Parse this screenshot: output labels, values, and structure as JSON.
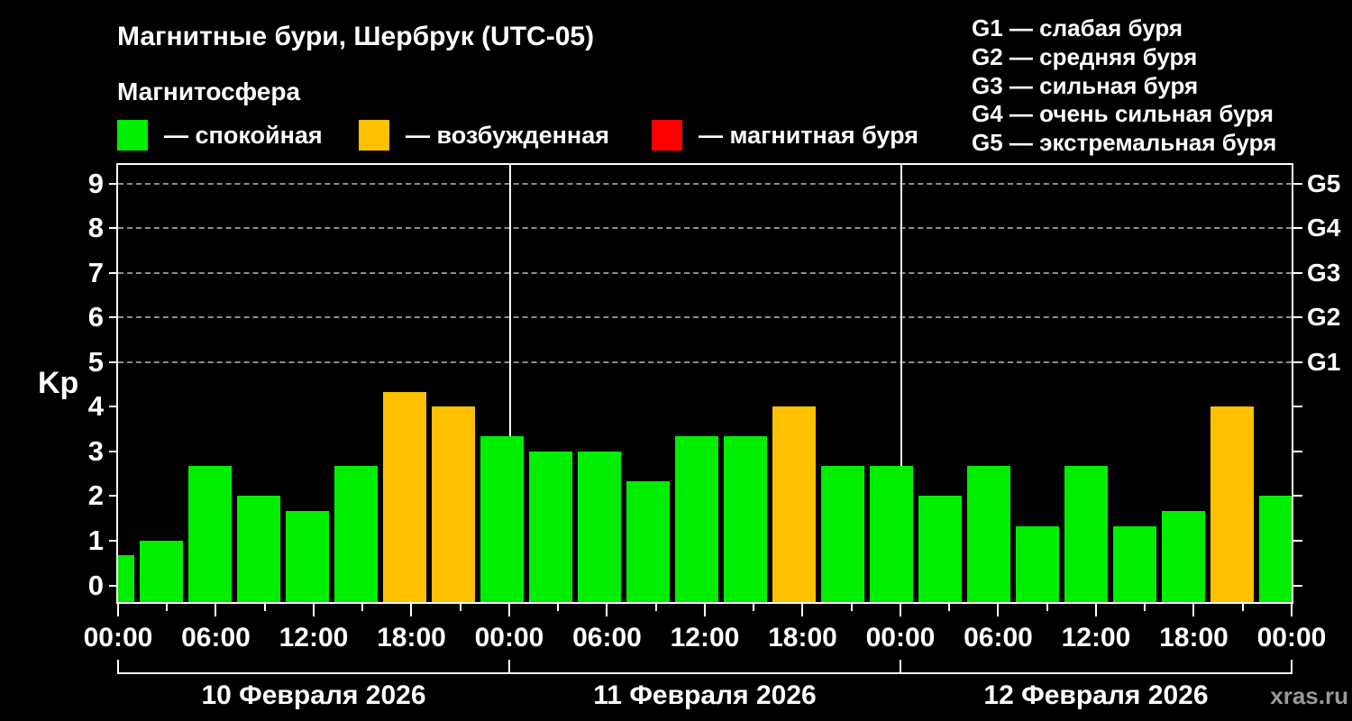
{
  "title": "Магнитные бури, Шербрук (UTC-05)",
  "subtitle": "Магнитосфера",
  "watermark": "xras.ru",
  "legend": [
    {
      "name": "quiet",
      "label": "— спокойная",
      "color": "#00ee00"
    },
    {
      "name": "excited",
      "label": "— возбужденная",
      "color": "#ffc000"
    },
    {
      "name": "storm",
      "label": "— магнитная буря",
      "color": "#ff0000"
    }
  ],
  "g_legend": [
    "G1 — слабая буря",
    "G2 — средняя буря",
    "G3 — сильная буря",
    "G4 — очень сильная буря",
    "G5 — экстремальная буря"
  ],
  "chart_data": {
    "type": "bar",
    "title": "Магнитные бури, Шербрук (UTC-05)",
    "ylabel": "Kp",
    "ylim": [
      0,
      9.4
    ],
    "yticks": [
      0,
      1,
      2,
      3,
      4,
      5,
      6,
      7,
      8,
      9
    ],
    "gridlines_at_kp": [
      5,
      6,
      7,
      8,
      9
    ],
    "grid_style": "dashed horizontal lines at storm levels only",
    "right_axis_labels": [
      {
        "kp": 5,
        "label": "G1"
      },
      {
        "kp": 6,
        "label": "G2"
      },
      {
        "kp": 7,
        "label": "G3"
      },
      {
        "kp": 8,
        "label": "G4"
      },
      {
        "kp": 9,
        "label": "G5"
      }
    ],
    "bar_interval_hours": 3,
    "x_tick_labels": [
      "00:00",
      "06:00",
      "12:00",
      "18:00",
      "00:00",
      "06:00",
      "12:00",
      "18:00",
      "00:00",
      "06:00",
      "12:00",
      "18:00",
      "00:00"
    ],
    "series": [
      {
        "date": "10 Февраля 2026",
        "kp": [
          0.67,
          1.0,
          2.67,
          2.0,
          1.67,
          2.67,
          4.33,
          4.0
        ]
      },
      {
        "date": "11 Февраля 2026",
        "kp": [
          3.33,
          3.0,
          3.0,
          2.33,
          3.33,
          3.33,
          4.0,
          2.67
        ]
      },
      {
        "date": "12 Февраля 2026",
        "kp": [
          2.67,
          2.0,
          2.67,
          1.33,
          2.67,
          1.33,
          1.67,
          4.0
        ]
      }
    ],
    "next_day_first_kp": 2.0,
    "color_rule": {
      "quiet_kp_below": 4,
      "excited_kp_below": 5,
      "storm_kp_from": 5
    },
    "colors": {
      "quiet": "#00ee00",
      "excited": "#ffc000",
      "storm": "#ff0000",
      "axis": "#ffffff",
      "grid": "#8c8c8c",
      "background": "#000000",
      "watermark": "#999999"
    }
  }
}
